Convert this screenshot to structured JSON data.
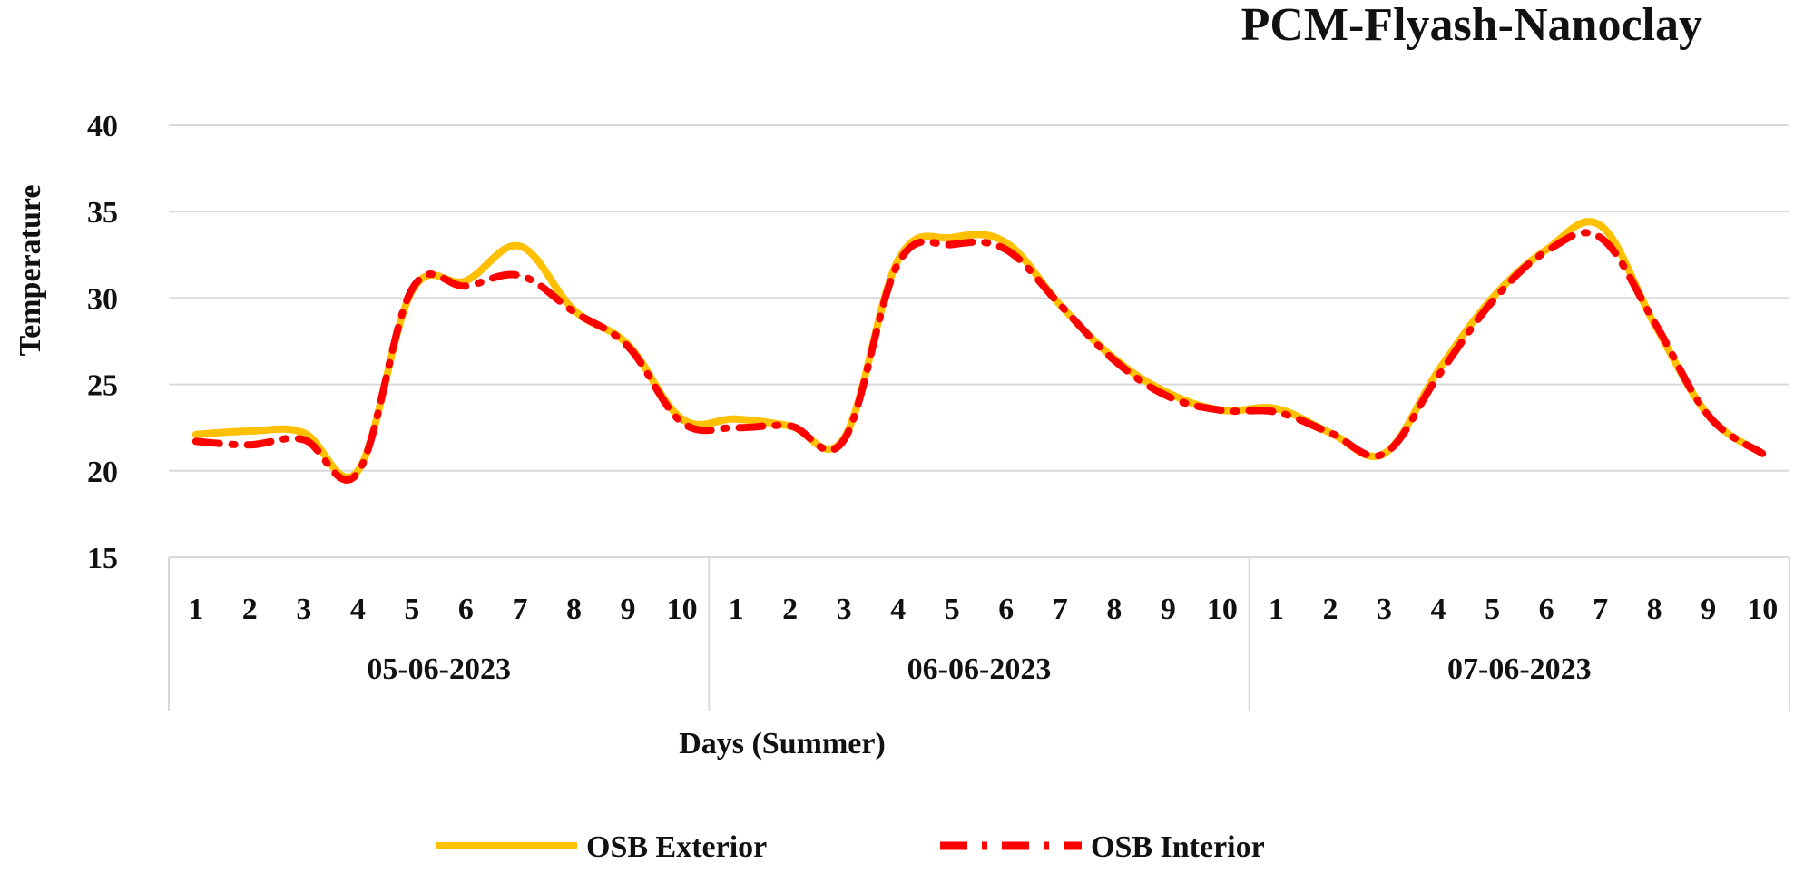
{
  "chart_data": {
    "type": "line",
    "title": "PCM-Flyash-Nanoclay",
    "xlabel": "Days (Summer)",
    "ylabel": "Temperature",
    "ylim": [
      15,
      40
    ],
    "yticks": [
      15,
      20,
      25,
      30,
      35,
      40
    ],
    "grid": true,
    "legend_position": "bottom",
    "groups": [
      {
        "label": "05-06-2023",
        "categories": [
          "1",
          "2",
          "3",
          "4",
          "5",
          "6",
          "7",
          "8",
          "9",
          "10"
        ]
      },
      {
        "label": "06-06-2023",
        "categories": [
          "1",
          "2",
          "3",
          "4",
          "5",
          "6",
          "7",
          "8",
          "9",
          "10"
        ]
      },
      {
        "label": "07-06-2023",
        "categories": [
          "1",
          "2",
          "3",
          "4",
          "5",
          "6",
          "7",
          "8",
          "9",
          "10"
        ]
      }
    ],
    "series": [
      {
        "name": "OSB Exterior",
        "color": "#FFC000",
        "style": "solid",
        "values": [
          22.1,
          22.3,
          22.2,
          20.0,
          30.4,
          31.0,
          33.0,
          29.3,
          27.3,
          23.0,
          23.0,
          22.6,
          21.9,
          32.2,
          33.5,
          33.2,
          29.6,
          26.5,
          24.5,
          23.5,
          23.6,
          22.2,
          21.0,
          25.8,
          30.0,
          32.8,
          34.2,
          28.5,
          23.2,
          21.0
        ]
      },
      {
        "name": "OSB Interior",
        "color": "#FF0000",
        "style": "dash-dot",
        "values": [
          21.7,
          21.5,
          21.8,
          19.9,
          30.5,
          30.7,
          31.3,
          29.2,
          27.2,
          22.8,
          22.5,
          22.6,
          21.8,
          32.0,
          33.1,
          32.8,
          29.6,
          26.4,
          24.3,
          23.5,
          23.4,
          22.2,
          21.0,
          25.5,
          29.8,
          32.7,
          33.5,
          28.6,
          23.2,
          21.0
        ]
      }
    ]
  }
}
